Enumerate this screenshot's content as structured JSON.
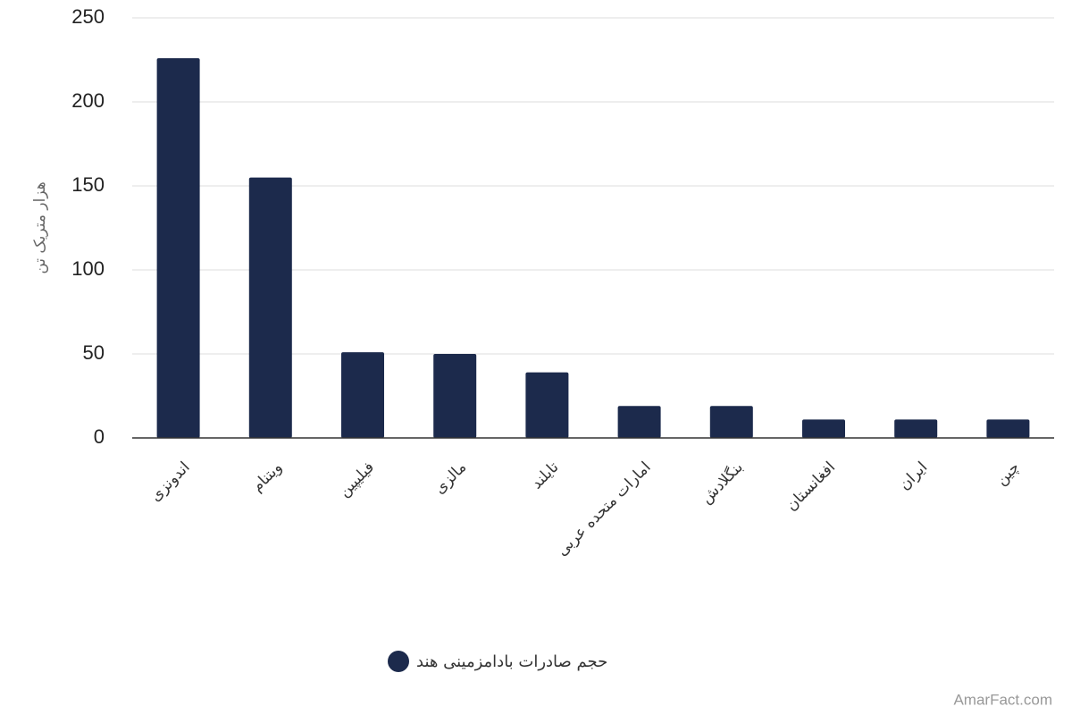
{
  "chart_data": {
    "type": "bar",
    "y_label": "هزار متریک تن",
    "categories": [
      "اندونزی",
      "ویتنام",
      "فیلیپین",
      "مالزی",
      "تایلند",
      "امارات متحده عربی",
      "بنگلادش",
      "افغانستان",
      "ایران",
      "چین"
    ],
    "series": [
      {
        "name": "حجم صادرات بادامزمینی هند",
        "color": "#1c2a4c",
        "values": [
          226,
          155,
          51,
          50,
          39,
          19,
          19,
          11,
          11,
          11
        ]
      }
    ],
    "ylim": [
      0,
      250
    ],
    "yticks": [
      0,
      50,
      100,
      150,
      200,
      250
    ],
    "grid": true,
    "watermark": "AmarFact.com"
  }
}
